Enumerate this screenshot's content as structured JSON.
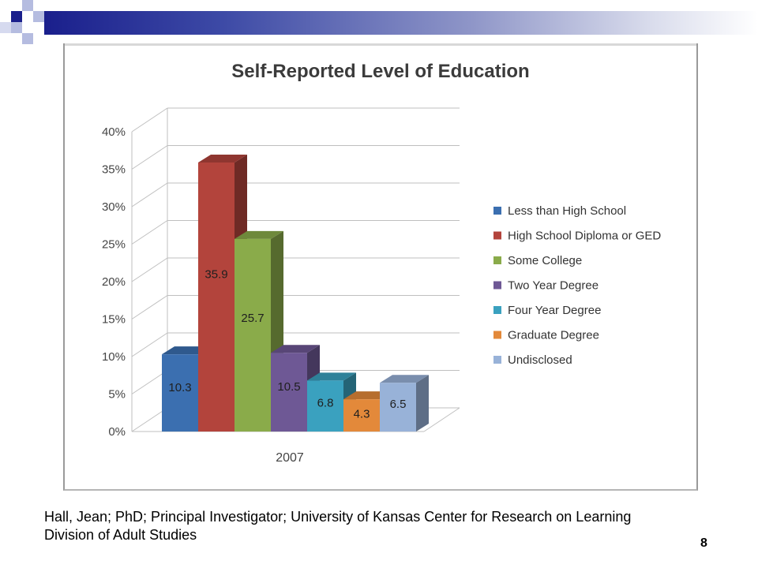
{
  "slide": {
    "citation": "Hall, Jean; PhD; Principal Investigator; University of Kansas Center for Research on Learning Division of Adult Studies",
    "page_number": "8",
    "accent_colors": [
      "#1a1f8c",
      "#3d4aa6",
      "#8f96c8"
    ]
  },
  "chart_data": {
    "type": "bar",
    "title": "Self-Reported Level of Education",
    "categories": [
      "2007"
    ],
    "ylim": [
      0,
      40
    ],
    "yticks": [
      "0%",
      "5%",
      "10%",
      "15%",
      "20%",
      "25%",
      "30%",
      "35%",
      "40%"
    ],
    "yunit": "%",
    "grid": true,
    "three_d": true,
    "legend_position": "right",
    "series": [
      {
        "name": "Less than High School",
        "values": [
          10.3
        ],
        "color": "#3b6fb0",
        "label": "10.3"
      },
      {
        "name": "High School Diploma or GED",
        "values": [
          35.9
        ],
        "color": "#b3443c",
        "label": "35.9"
      },
      {
        "name": "Some College",
        "values": [
          25.7
        ],
        "color": "#8aab4a",
        "label": "25.7"
      },
      {
        "name": "Two Year Degree",
        "values": [
          10.5
        ],
        "color": "#6e5895",
        "label": "10.5"
      },
      {
        "name": "Four Year Degree",
        "values": [
          6.8
        ],
        "color": "#3aa1bf",
        "label": "6.8"
      },
      {
        "name": "Graduate Degree",
        "values": [
          4.3
        ],
        "color": "#e3893a",
        "label": "4.3"
      },
      {
        "name": "Undisclosed",
        "values": [
          6.5
        ],
        "color": "#98b2d8",
        "label": "6.5"
      }
    ]
  }
}
